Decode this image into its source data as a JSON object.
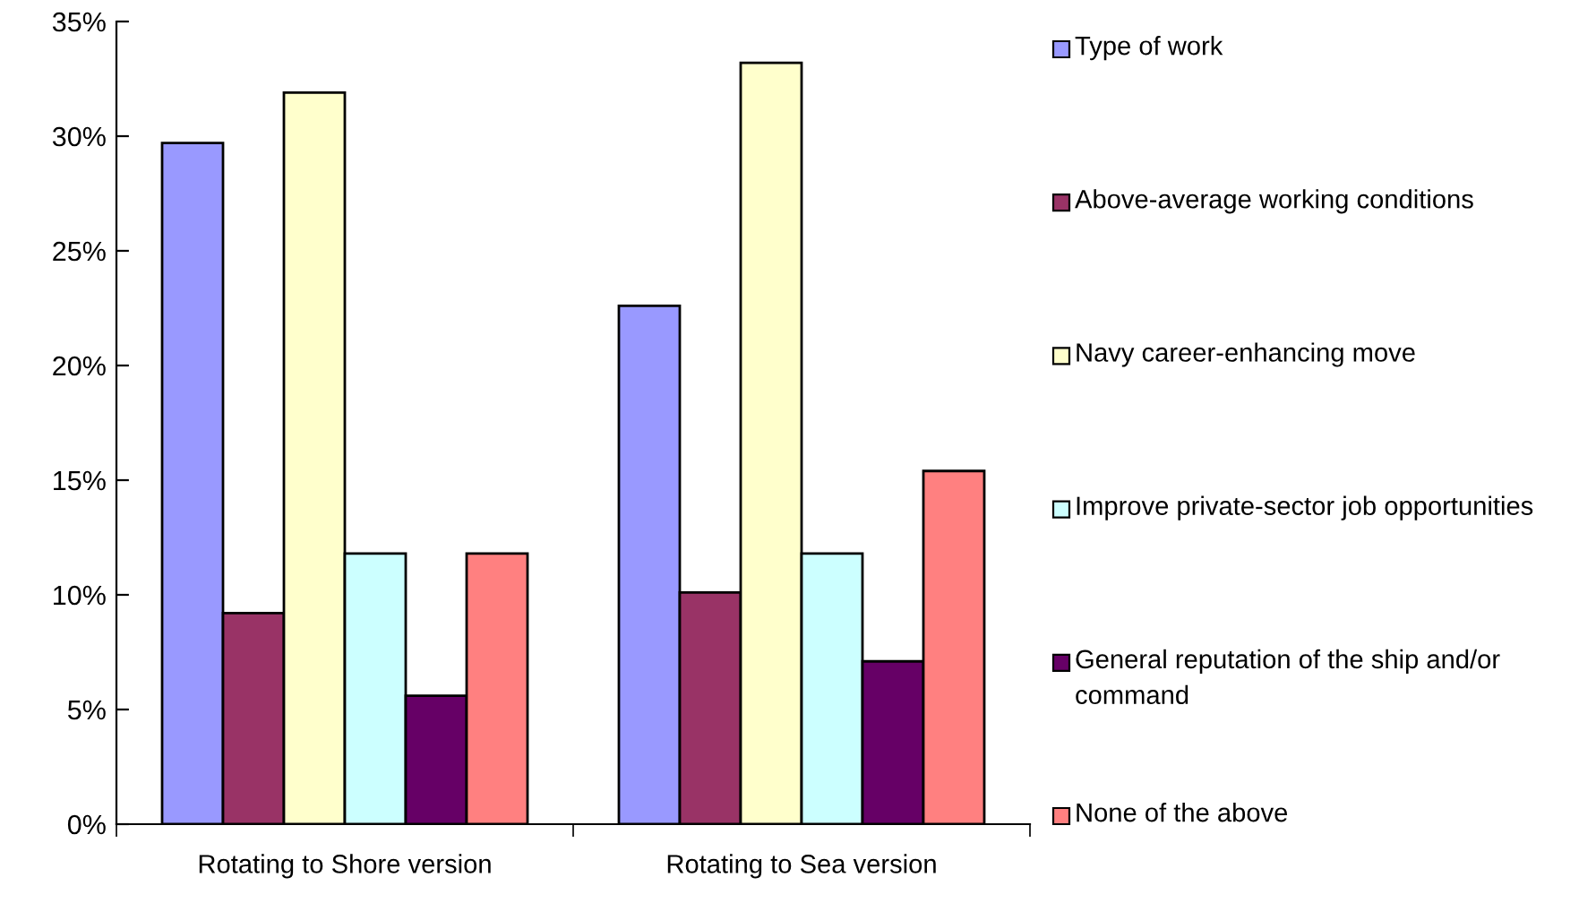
{
  "chart_data": {
    "type": "bar",
    "categories": [
      "Rotating to Shore version",
      "Rotating to Sea version"
    ],
    "series": [
      {
        "name": "Type of work",
        "color": "#9999ff",
        "values": [
          29.7,
          22.6
        ]
      },
      {
        "name": "Above-average working conditions",
        "color": "#993366",
        "values": [
          9.2,
          10.1
        ]
      },
      {
        "name": "Navy career-enhancing move",
        "color": "#ffffcc",
        "values": [
          31.9,
          33.2
        ]
      },
      {
        "name": "Improve private-sector job opportunities",
        "color": "#ccffff",
        "values": [
          11.8,
          11.8
        ]
      },
      {
        "name": "General reputation of the ship and/or command",
        "color": "#660066",
        "values": [
          5.6,
          7.1
        ]
      },
      {
        "name": "None of the above",
        "color": "#ff8080",
        "values": [
          11.8,
          15.4
        ]
      }
    ],
    "ylim": [
      0,
      35
    ],
    "yticks": [
      {
        "value": 0,
        "label": "0%"
      },
      {
        "value": 5,
        "label": "5%"
      },
      {
        "value": 10,
        "label": "10%"
      },
      {
        "value": 15,
        "label": "15%"
      },
      {
        "value": 20,
        "label": "20%"
      },
      {
        "value": 25,
        "label": "25%"
      },
      {
        "value": 30,
        "label": "30%"
      },
      {
        "value": 35,
        "label": "35%"
      }
    ],
    "grid": false,
    "legend": "right"
  }
}
